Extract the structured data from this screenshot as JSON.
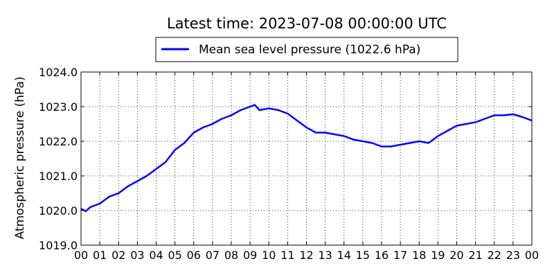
{
  "chart_data": {
    "type": "line",
    "title": "Latest time: 2023-07-08 00:00:00 UTC",
    "xlabel": "",
    "ylabel": "Atmospheric pressure (hPa)",
    "legend": {
      "placement": "top-center",
      "entries": [
        "Mean sea level pressure (1022.6 hPa)"
      ]
    },
    "grid": true,
    "ylim": [
      1019.0,
      1024.0
    ],
    "xlim": [
      0,
      24
    ],
    "x_tick_labels": [
      "00",
      "01",
      "02",
      "03",
      "04",
      "05",
      "06",
      "07",
      "08",
      "09",
      "10",
      "11",
      "12",
      "13",
      "14",
      "15",
      "16",
      "17",
      "18",
      "19",
      "20",
      "21",
      "22",
      "23",
      "00"
    ],
    "y_tick_labels": [
      "1019.0",
      "1020.0",
      "1021.0",
      "1022.0",
      "1023.0",
      "1024.0"
    ],
    "colors": {
      "series": "#0000ff"
    },
    "series": [
      {
        "name": "Mean sea level pressure (1022.6 hPa)",
        "x": [
          0,
          0.25,
          0.5,
          1,
          1.5,
          2,
          2.5,
          3,
          3.5,
          4,
          4.5,
          5,
          5.5,
          6,
          6.5,
          7,
          7.5,
          8,
          8.5,
          9,
          9.25,
          9.5,
          10,
          10.5,
          11,
          11.5,
          12,
          12.5,
          13,
          13.5,
          14,
          14.5,
          15,
          15.5,
          16,
          16.5,
          17,
          17.5,
          18,
          18.5,
          19,
          19.5,
          20,
          20.5,
          21,
          21.5,
          22,
          22.5,
          23,
          23.5,
          24
        ],
        "values": [
          1020.05,
          1019.98,
          1020.1,
          1020.2,
          1020.4,
          1020.5,
          1020.7,
          1020.85,
          1021.0,
          1021.2,
          1021.4,
          1021.75,
          1021.95,
          1022.25,
          1022.4,
          1022.5,
          1022.65,
          1022.75,
          1022.9,
          1023.0,
          1023.05,
          1022.9,
          1022.95,
          1022.9,
          1022.8,
          1022.6,
          1022.4,
          1022.25,
          1022.25,
          1022.2,
          1022.15,
          1022.05,
          1022.0,
          1021.95,
          1021.85,
          1021.85,
          1021.9,
          1021.95,
          1022.0,
          1021.95,
          1022.15,
          1022.3,
          1022.45,
          1022.5,
          1022.55,
          1022.65,
          1022.75,
          1022.75,
          1022.78,
          1022.7,
          1022.6
        ]
      }
    ]
  }
}
